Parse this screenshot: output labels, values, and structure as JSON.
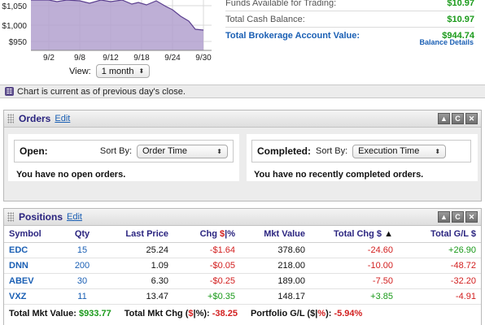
{
  "chart": {
    "y_ticks": [
      "$1,050",
      "$1,000",
      "$950"
    ],
    "x_ticks": [
      "9/2",
      "9/8",
      "9/12",
      "9/18",
      "9/24",
      "9/30"
    ],
    "view_label": "View:",
    "view_value": "1 month",
    "area_color": "#b3a1cf",
    "line_color": "#5b3f8f"
  },
  "account": {
    "rows": [
      {
        "label": "Funds Available for Trading:",
        "value": "$10.97"
      },
      {
        "label": "Total Cash Balance:",
        "value": "$10.97"
      },
      {
        "label": "Total Brokerage Account Value:",
        "value": "$944.74"
      }
    ],
    "balance_details": "Balance Details"
  },
  "note": {
    "text": "Chart is current as of previous day's close."
  },
  "orders": {
    "title": "Orders",
    "edit": "Edit",
    "open_label": "Open:",
    "open_sort_label": "Sort By:",
    "open_sort_value": "Order Time",
    "open_msg": "You have no open orders.",
    "completed_label": "Completed:",
    "completed_sort_label": "Sort By:",
    "completed_sort_value": "Execution Time",
    "completed_msg": "You have no recently completed orders."
  },
  "positions": {
    "title": "Positions",
    "edit": "Edit",
    "headers": {
      "symbol": "Symbol",
      "qty": "Qty",
      "last_price": "Last Price",
      "chg_prefix": "Chg ",
      "chg_dollar": "$",
      "chg_sep": "|",
      "chg_pct": "%",
      "mkt_value": "Mkt Value",
      "total_chg": "Total Chg $",
      "sort_arrow": "▲",
      "total_gl": "Total G/L $"
    },
    "rows": [
      {
        "symbol": "EDC",
        "qty": "15",
        "last": "25.24",
        "chg": "-$1.64",
        "mkt": "378.60",
        "tchg": "-24.60",
        "gl": "+26.90"
      },
      {
        "symbol": "DNN",
        "qty": "200",
        "last": "1.09",
        "chg": "-$0.05",
        "mkt": "218.00",
        "tchg": "-10.00",
        "gl": "-48.72"
      },
      {
        "symbol": "ABEV",
        "qty": "30",
        "last": "6.30",
        "chg": "-$0.25",
        "mkt": "189.00",
        "tchg": "-7.50",
        "gl": "-32.20"
      },
      {
        "symbol": "VXZ",
        "qty": "11",
        "last": "13.47",
        "chg": "+$0.35",
        "mkt": "148.17",
        "tchg": "+3.85",
        "gl": "-4.91"
      }
    ],
    "totals": {
      "mkt_label": "Total Mkt Value:",
      "mkt_value": "$933.77",
      "chg_label": "Total Mkt Chg (",
      "chg_dollar": "$",
      "chg_sep": "|",
      "chg_pct": "%",
      "chg_close": "):",
      "chg_value": "-38.25",
      "gl_label": "Portfolio G/L (",
      "gl_dollar": "$",
      "gl_sep": "|",
      "gl_pct": "%",
      "gl_close": "):",
      "gl_value": "-5.94%"
    }
  },
  "colors": {
    "positive": "#1a9a1a",
    "negative": "#d21e1e",
    "link": "#1a5fb4",
    "heading": "#2b2580"
  }
}
